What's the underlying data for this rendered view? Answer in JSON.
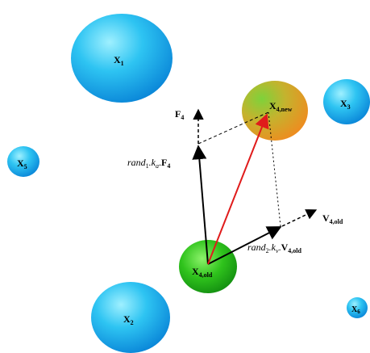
{
  "nodes": {
    "x1": {
      "label": "X",
      "sub": "1",
      "gradient": "sphere-cyan"
    },
    "x2": {
      "label": "X",
      "sub": "2",
      "gradient": "sphere-cyan"
    },
    "x3": {
      "label": "X",
      "sub": "3",
      "gradient": "sphere-cyan"
    },
    "x5": {
      "label": "X",
      "sub": "5",
      "gradient": "sphere-cyan"
    },
    "x6": {
      "label": "X",
      "sub": "6",
      "gradient": "sphere-cyan"
    },
    "x4new": {
      "label": "X",
      "sub": "4,new",
      "gradient": "sphere-orange"
    },
    "x4old": {
      "label": "X",
      "sub": "4,old",
      "gradient": "sphere-green"
    }
  },
  "vectors": {
    "f4": {
      "label": "F",
      "sub": "4"
    },
    "v4old": {
      "label": "V",
      "sub": "4,old"
    },
    "rand1": {
      "pre": "rand",
      "pre_sub": "1",
      "mid": ".k",
      "mid_sub": "a",
      "dot": ".",
      "main": "F",
      "main_sub": "4"
    },
    "rand2": {
      "pre": "rand",
      "pre_sub": "2",
      "mid": ".k",
      "mid_sub": "v",
      "dot": ".",
      "main": "V",
      "main_sub": "4,old"
    }
  },
  "colors": {
    "arrow": "#000000",
    "result_arrow": "#e01b1b",
    "dashed": "#000000",
    "cyan": "#1fb6ee",
    "green": "#2ec71a",
    "orange": "#e6a22a"
  }
}
